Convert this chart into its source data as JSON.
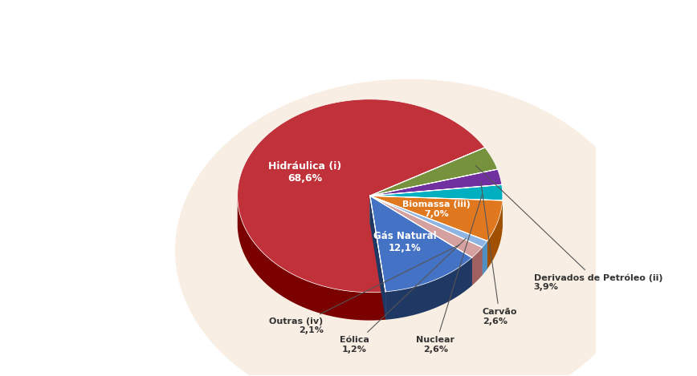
{
  "labels": [
    "Hidráulica (i)",
    "Gás Natural",
    "Outras (iv)",
    "Eólica",
    "Biomassa (iii)",
    "Nuclear",
    "Carvão",
    "Derivados de Petróleo (ii)"
  ],
  "values": [
    68.6,
    12.1,
    2.1,
    1.2,
    7.0,
    2.6,
    2.6,
    3.9
  ],
  "colors": [
    "#c0313a",
    "#4472c4",
    "#d4a0a0",
    "#8db4e2",
    "#e07820",
    "#00b0c0",
    "#7030a0",
    "#76923c"
  ],
  "dark_colors": [
    "#7b0000",
    "#1f3864",
    "#a06060",
    "#5090c0",
    "#a05000",
    "#007888",
    "#4a1870",
    "#4a5a20"
  ],
  "labels_display": [
    "Hidráulica (i)\n68,6%",
    "Gás Natural\n12,1%",
    "Outras (iv)\n2,1%",
    "Eólica\n1,2%",
    "Biomassa (iii)\n7,0%",
    "Nuclear\n2,6%",
    "Carvão\n2,6%",
    "Derivados de Petróleo (ii)\n3,9%"
  ],
  "background_color": "#fdf4ec",
  "text_color": "#404040",
  "figure_bg": "#ffffff"
}
